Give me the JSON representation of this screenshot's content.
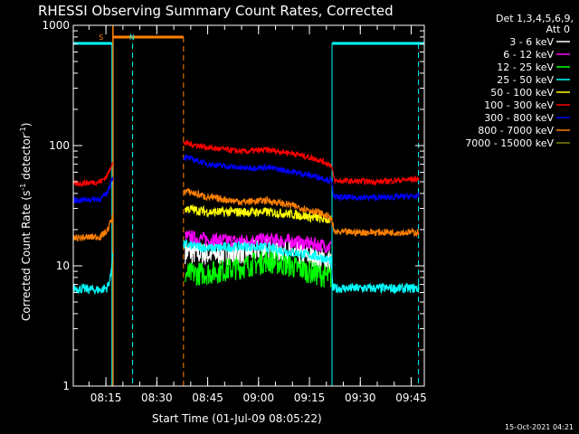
{
  "chart_data": {
    "type": "line",
    "title": "RHESSI Observing Summary Count Rates, Corrected",
    "xlabel": "Start Time (01-Jul-09 08:05:22)",
    "ylabel_main": "Corrected Count Rate (s",
    "ylabel_sup1": "-1",
    "ylabel_mid": " detector",
    "ylabel_sup2": "-1",
    "ylabel_end": ")",
    "yscale": "log",
    "ylim": [
      1,
      1000
    ],
    "xlim_minutes": [
      0,
      103.5
    ],
    "x_ticks": [
      {
        "label": "08:15",
        "minute": 9.63
      },
      {
        "label": "08:30",
        "minute": 24.63
      },
      {
        "label": "08:45",
        "minute": 39.63
      },
      {
        "label": "09:00",
        "minute": 54.63
      },
      {
        "label": "09:15",
        "minute": 69.63
      },
      {
        "label": "09:30",
        "minute": 84.63
      },
      {
        "label": "09:45",
        "minute": 99.63
      }
    ],
    "y_ticks": [
      {
        "label": "1",
        "value": 1
      },
      {
        "label": "10",
        "value": 10
      },
      {
        "label": "100",
        "value": 100
      },
      {
        "label": "1000",
        "value": 1000
      }
    ],
    "legend_header": [
      "Det 1,3,4,5,6,9,",
      "Att 0"
    ],
    "series": [
      {
        "name": "3 - 6 keV",
        "color": "#ffffff",
        "points": [
          [
            33,
            13
          ],
          [
            40,
            12.5
          ],
          [
            50,
            13
          ],
          [
            57,
            14
          ],
          [
            64,
            13
          ],
          [
            72,
            11.5
          ],
          [
            76,
            11
          ]
        ],
        "noise": 0.1
      },
      {
        "name": "6 - 12 keV",
        "color": "#ff00ff",
        "points": [
          [
            33,
            17.5
          ],
          [
            40,
            16.5
          ],
          [
            48,
            16
          ],
          [
            57,
            16.5
          ],
          [
            64,
            16
          ],
          [
            72,
            15
          ],
          [
            76,
            14.5
          ]
        ],
        "noise": 0.06
      },
      {
        "name": "12 - 25 keV",
        "color": "#00ff00",
        "points": [
          [
            33,
            8.5
          ],
          [
            40,
            8.7
          ],
          [
            50,
            9.8
          ],
          [
            57,
            11
          ],
          [
            64,
            10
          ],
          [
            72,
            8.5
          ],
          [
            76,
            8
          ]
        ],
        "noise": 0.1
      },
      {
        "name": "25 - 50 keV",
        "color": "#00ffff",
        "points": [
          [
            0,
            6.5
          ],
          [
            8,
            6.3
          ],
          [
            10,
            6.6
          ],
          [
            11,
            8
          ],
          [
            11.5,
            12
          ],
          [
            33,
            15
          ],
          [
            40,
            14
          ],
          [
            50,
            14.5
          ],
          [
            57,
            14.2
          ],
          [
            64,
            13
          ],
          [
            72,
            12
          ],
          [
            76,
            11
          ],
          [
            76.5,
            6.5
          ],
          [
            90,
            6.5
          ],
          [
            102,
            6.5
          ]
        ],
        "noise": 0.04
      },
      {
        "name": "50 - 100 keV",
        "color": "#ffff00",
        "points": [
          [
            33,
            30
          ],
          [
            40,
            28
          ],
          [
            50,
            28
          ],
          [
            57,
            28
          ],
          [
            64,
            27
          ],
          [
            72,
            25
          ],
          [
            76,
            24
          ]
        ],
        "noise": 0.04
      },
      {
        "name": "100 - 300 keV",
        "color": "#ff0000",
        "points": [
          [
            0,
            48
          ],
          [
            8,
            50
          ],
          [
            10,
            56
          ],
          [
            11.5,
            72
          ],
          [
            33,
            105
          ],
          [
            40,
            96
          ],
          [
            50,
            89
          ],
          [
            57,
            92
          ],
          [
            64,
            87
          ],
          [
            72,
            77
          ],
          [
            76,
            69
          ],
          [
            77,
            51
          ],
          [
            90,
            50
          ],
          [
            102,
            53
          ]
        ],
        "noise": 0.025
      },
      {
        "name": "300 - 800 keV",
        "color": "#0000ff",
        "points": [
          [
            0,
            35
          ],
          [
            8,
            36
          ],
          [
            10,
            40
          ],
          [
            11.5,
            54
          ],
          [
            33,
            80
          ],
          [
            40,
            70
          ],
          [
            50,
            65
          ],
          [
            57,
            66
          ],
          [
            64,
            61
          ],
          [
            72,
            55
          ],
          [
            76,
            51
          ],
          [
            77,
            37
          ],
          [
            90,
            37
          ],
          [
            102,
            38
          ]
        ],
        "noise": 0.025
      },
      {
        "name": "800 - 7000 keV",
        "color": "#ff8000",
        "points": [
          [
            0,
            17
          ],
          [
            8,
            17.5
          ],
          [
            10,
            19.5
          ],
          [
            11.5,
            25
          ],
          [
            33,
            42
          ],
          [
            40,
            37
          ],
          [
            50,
            34
          ],
          [
            57,
            35
          ],
          [
            64,
            32
          ],
          [
            72,
            28
          ],
          [
            76,
            25
          ],
          [
            77,
            19
          ],
          [
            90,
            19
          ],
          [
            102,
            19
          ]
        ],
        "noise": 0.03
      },
      {
        "name": "7000 - 15000 keV",
        "color": "#808000",
        "points": [],
        "noise": 0
      }
    ],
    "annotations": [
      {
        "text": "S",
        "color": "#ff8000",
        "minute": 7.5
      },
      {
        "text": "N",
        "color": "#00ffff",
        "minute": 16.5
      }
    ],
    "gaps": [
      [
        11.7,
        32.5
      ]
    ]
  },
  "footer": {
    "timestamp": "15-Oct-2021 04:21"
  }
}
